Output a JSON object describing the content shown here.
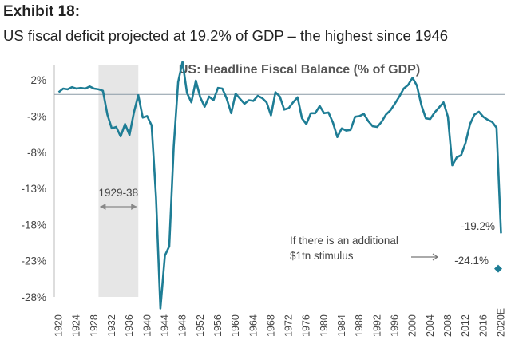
{
  "header": {
    "exhibit": "Exhibit 18:",
    "subtitle": "US fiscal deficit projected at 19.2% of GDP – the highest since 1946"
  },
  "chart_data": {
    "type": "line",
    "title": "US: Headline Fiscal Balance (% of GDP)",
    "xlabel": "",
    "ylabel": "",
    "ylim": [
      -28,
      4
    ],
    "xlim": [
      1919,
      2021
    ],
    "yticks": [
      2,
      -3,
      -8,
      -13,
      -18,
      -23,
      -28
    ],
    "ytick_labels": [
      "2%",
      "-3%",
      "-8%",
      "-13%",
      "-18%",
      "-23%",
      "-28%"
    ],
    "xticks": [
      1920,
      1924,
      1928,
      1932,
      1936,
      1940,
      1944,
      1948,
      1952,
      1956,
      1960,
      1964,
      1968,
      1972,
      1976,
      1980,
      1984,
      1988,
      1992,
      1996,
      2000,
      2004,
      2008,
      2012,
      2016,
      2020
    ],
    "xtick_labels": [
      "1920",
      "1924",
      "1928",
      "1932",
      "1936",
      "1940",
      "1944",
      "1948",
      "1952",
      "1956",
      "1960",
      "1964",
      "1968",
      "1972",
      "1976",
      "1980",
      "1984",
      "1988",
      "1992",
      "1996",
      "2000",
      "2004",
      "2008",
      "2012",
      "2016",
      "2020E"
    ],
    "shaded_region": {
      "x": [
        1929,
        1938
      ],
      "label": "1929-38"
    },
    "series": [
      {
        "name": "US headline fiscal balance",
        "color": "#1e7d95",
        "x": [
          1920,
          1921,
          1922,
          1923,
          1924,
          1925,
          1926,
          1927,
          1928,
          1929,
          1930,
          1931,
          1932,
          1933,
          1934,
          1935,
          1936,
          1937,
          1938,
          1939,
          1940,
          1941,
          1942,
          1943,
          1944,
          1945,
          1946,
          1947,
          1948,
          1949,
          1950,
          1951,
          1952,
          1953,
          1954,
          1955,
          1956,
          1957,
          1958,
          1959,
          1960,
          1961,
          1962,
          1963,
          1964,
          1965,
          1966,
          1967,
          1968,
          1969,
          1970,
          1971,
          1972,
          1973,
          1974,
          1975,
          1976,
          1977,
          1978,
          1979,
          1980,
          1981,
          1982,
          1983,
          1984,
          1985,
          1986,
          1987,
          1988,
          1989,
          1990,
          1991,
          1992,
          1993,
          1994,
          1995,
          1996,
          1997,
          1998,
          1999,
          2000,
          2001,
          2002,
          2003,
          2004,
          2005,
          2006,
          2007,
          2008,
          2009,
          2010,
          2011,
          2012,
          2013,
          2014,
          2015,
          2016,
          2017,
          2018,
          2019,
          2020
        ],
        "values": [
          0.3,
          0.8,
          0.7,
          1.0,
          0.8,
          0.9,
          0.8,
          1.1,
          0.8,
          0.7,
          0.5,
          -2.8,
          -4.7,
          -4.5,
          -5.8,
          -4.1,
          -5.6,
          -2.5,
          -0.1,
          -3.2,
          -3.0,
          -4.3,
          -14.2,
          -29.6,
          -22.3,
          -21.0,
          -7.2,
          1.7,
          4.5,
          0.2,
          -1.1,
          1.9,
          -0.4,
          -1.7,
          -0.3,
          -0.8,
          0.9,
          0.8,
          -0.6,
          -2.6,
          0.1,
          -0.6,
          -1.3,
          -0.8,
          -0.9,
          -0.2,
          -0.5,
          -1.1,
          -2.9,
          0.3,
          -0.3,
          -2.1,
          -1.9,
          -1.1,
          -0.4,
          -3.3,
          -4.1,
          -2.6,
          -2.6,
          -1.6,
          -2.6,
          -2.5,
          -3.9,
          -5.9,
          -4.7,
          -5.0,
          -4.9,
          -3.1,
          -3.0,
          -2.7,
          -3.7,
          -4.4,
          -4.5,
          -3.8,
          -2.8,
          -2.2,
          -1.3,
          -0.3,
          0.8,
          1.3,
          2.3,
          1.2,
          -1.5,
          -3.3,
          -3.4,
          -2.5,
          -1.8,
          -1.1,
          -3.1,
          -9.8,
          -8.7,
          -8.4,
          -6.7,
          -4.1,
          -2.8,
          -2.4,
          -3.1,
          -3.5,
          -3.8,
          -4.6,
          -19.2
        ]
      }
    ],
    "extra_points": [
      {
        "x": 2020,
        "value": -24.1,
        "label": "-24.1%",
        "marker": "diamond"
      }
    ],
    "annotations": [
      {
        "text": "-19.2%"
      },
      {
        "text": "If there is an additional"
      },
      {
        "text": "$1tn stimulus"
      }
    ]
  }
}
